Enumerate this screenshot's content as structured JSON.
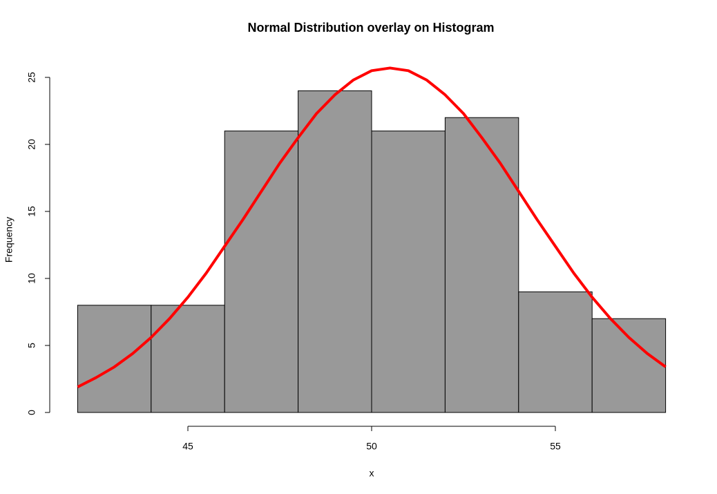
{
  "chart_data": {
    "type": "histogram",
    "title": "Normal Distribution overlay on Histogram",
    "x_label": "x",
    "y_label": "Frequency",
    "bins": [
      42,
      44,
      46,
      48,
      50,
      52,
      54,
      56,
      58
    ],
    "values": [
      8,
      8,
      21,
      24,
      21,
      22,
      9,
      7
    ],
    "color": "#999999",
    "curve": {
      "color": "#ff0000",
      "x": [
        42,
        42.5,
        43,
        43.5,
        44,
        44.5,
        45,
        45.5,
        46,
        46.5,
        47,
        47.5,
        48,
        48.5,
        49,
        49.5,
        50,
        50.5,
        51,
        51.5,
        52,
        52.5,
        53,
        53.5,
        54,
        54.5,
        55,
        55.5,
        56,
        56.5,
        57,
        57.5,
        58
      ],
      "values": [
        1.9,
        2.6,
        3.4,
        4.4,
        5.6,
        7.0,
        8.6,
        10.4,
        12.4,
        14.4,
        16.5,
        18.6,
        20.5,
        22.3,
        23.7,
        24.8,
        25.5,
        25.7,
        25.5,
        24.8,
        23.7,
        22.3,
        20.5,
        18.6,
        16.5,
        14.4,
        12.4,
        10.4,
        8.6,
        7.0,
        5.6,
        4.4,
        3.4
      ]
    },
    "xlim": [
      42,
      58
    ],
    "xticks": [
      45,
      50,
      55
    ],
    "ylim": [
      0,
      25
    ],
    "yticks": [
      0,
      5,
      10,
      15,
      20,
      25
    ]
  }
}
